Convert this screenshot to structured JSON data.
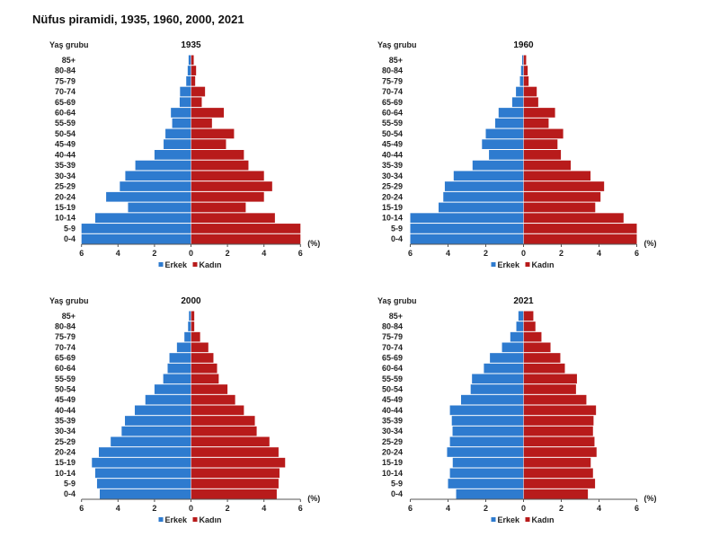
{
  "title": "Nüfus piramidi, 1935, 1960, 2000, 2021",
  "chart_data": [
    {
      "type": "bar",
      "subtype": "population-pyramid",
      "title": "1935",
      "ylabel": "Yaş grubu",
      "xlabel": "(%)",
      "xlim": [
        -6,
        6
      ],
      "xticks": [
        "6",
        "4",
        "2",
        "0",
        "2",
        "4",
        "6"
      ],
      "categories": [
        "85+",
        "80-84",
        "75-79",
        "70-74",
        "65-69",
        "60-64",
        "55-59",
        "50-54",
        "45-49",
        "40-44",
        "35-39",
        "30-34",
        "25-29",
        "20-24",
        "15-19",
        "10-14",
        "5-9",
        "0-4"
      ],
      "series": [
        {
          "name": "Erkek",
          "color": "#2E7BCF",
          "values": [
            0.13,
            0.18,
            0.26,
            0.6,
            0.62,
            1.1,
            1.03,
            1.4,
            1.5,
            2.0,
            3.05,
            3.6,
            3.9,
            4.65,
            3.45,
            5.25,
            6.0,
            6.0
          ]
        },
        {
          "name": "Kadın",
          "color": "#B81B1B",
          "values": [
            0.15,
            0.28,
            0.23,
            0.77,
            0.59,
            1.8,
            1.15,
            2.36,
            1.92,
            2.9,
            3.15,
            4.0,
            4.45,
            4.0,
            3.0,
            4.6,
            6.0,
            6.0
          ]
        }
      ],
      "legend": [
        "Erkek",
        "Kadın"
      ],
      "legend_position": "bottom"
    },
    {
      "type": "bar",
      "subtype": "population-pyramid",
      "title": "1960",
      "ylabel": "Yaş grubu",
      "xlabel": "(%)",
      "xlim": [
        -6,
        6
      ],
      "xticks": [
        "6",
        "4",
        "2",
        "0",
        "2",
        "4",
        "6"
      ],
      "categories": [
        "85+",
        "80-84",
        "75-79",
        "70-74",
        "65-69",
        "60-64",
        "55-59",
        "50-54",
        "45-49",
        "40-44",
        "35-39",
        "30-34",
        "25-29",
        "20-24",
        "15-19",
        "10-14",
        "5-9",
        "0-4"
      ],
      "series": [
        {
          "name": "Erkek",
          "color": "#2E7BCF",
          "values": [
            0.07,
            0.13,
            0.19,
            0.4,
            0.6,
            1.32,
            1.5,
            2.0,
            2.2,
            1.83,
            2.7,
            3.7,
            4.17,
            4.25,
            4.5,
            6.0,
            6.0,
            6.0
          ]
        },
        {
          "name": "Kadın",
          "color": "#B81B1B",
          "values": [
            0.14,
            0.22,
            0.27,
            0.7,
            0.78,
            1.67,
            1.33,
            2.1,
            1.8,
            1.98,
            2.5,
            3.55,
            4.27,
            4.08,
            3.8,
            5.3,
            6.0,
            6.0
          ]
        }
      ],
      "legend": [
        "Erkek",
        "Kadın"
      ],
      "legend_position": "bottom"
    },
    {
      "type": "bar",
      "subtype": "population-pyramid",
      "title": "2000",
      "ylabel": "Yaş grubu",
      "xlabel": "(%)",
      "xlim": [
        -6,
        6
      ],
      "xticks": [
        "6",
        "4",
        "2",
        "0",
        "2",
        "4",
        "6"
      ],
      "categories": [
        "85+",
        "80-84",
        "75-79",
        "70-74",
        "65-69",
        "60-64",
        "55-59",
        "50-54",
        "45-49",
        "40-44",
        "35-39",
        "30-34",
        "25-29",
        "20-24",
        "15-19",
        "10-14",
        "5-9",
        "0-4"
      ],
      "series": [
        {
          "name": "Erkek",
          "color": "#2E7BCF",
          "values": [
            0.11,
            0.16,
            0.36,
            0.77,
            1.18,
            1.28,
            1.52,
            2.0,
            2.5,
            3.08,
            3.62,
            3.8,
            4.4,
            5.05,
            5.43,
            5.25,
            5.15,
            5.0
          ]
        },
        {
          "name": "Kadın",
          "color": "#B81B1B",
          "values": [
            0.18,
            0.18,
            0.5,
            0.95,
            1.23,
            1.43,
            1.52,
            2.0,
            2.42,
            2.9,
            3.5,
            3.6,
            4.3,
            4.8,
            5.16,
            4.85,
            4.8,
            4.7
          ]
        }
      ],
      "legend": [
        "Erkek",
        "Kadın"
      ],
      "legend_position": "bottom"
    },
    {
      "type": "bar",
      "subtype": "population-pyramid",
      "title": "2021",
      "ylabel": "Yaş grubu",
      "xlabel": "(%)",
      "xlim": [
        -6,
        6
      ],
      "xticks": [
        "6",
        "4",
        "2",
        "0",
        "2",
        "4",
        "6"
      ],
      "categories": [
        "85+",
        "80-84",
        "75-79",
        "70-74",
        "65-69",
        "60-64",
        "55-59",
        "50-54",
        "45-49",
        "40-44",
        "35-39",
        "30-34",
        "25-29",
        "20-24",
        "15-19",
        "10-14",
        "5-9",
        "0-4"
      ],
      "series": [
        {
          "name": "Erkek",
          "color": "#2E7BCF",
          "values": [
            0.27,
            0.38,
            0.7,
            1.14,
            1.78,
            2.1,
            2.73,
            2.8,
            3.31,
            3.9,
            3.8,
            3.76,
            3.9,
            4.05,
            3.75,
            3.9,
            4.0,
            3.57
          ]
        },
        {
          "name": "Kadın",
          "color": "#B81B1B",
          "values": [
            0.52,
            0.63,
            0.95,
            1.43,
            1.95,
            2.19,
            2.83,
            2.78,
            3.33,
            3.84,
            3.71,
            3.68,
            3.76,
            3.87,
            3.56,
            3.68,
            3.79,
            3.41
          ]
        }
      ],
      "legend": [
        "Erkek",
        "Kadın"
      ],
      "legend_position": "bottom"
    }
  ]
}
